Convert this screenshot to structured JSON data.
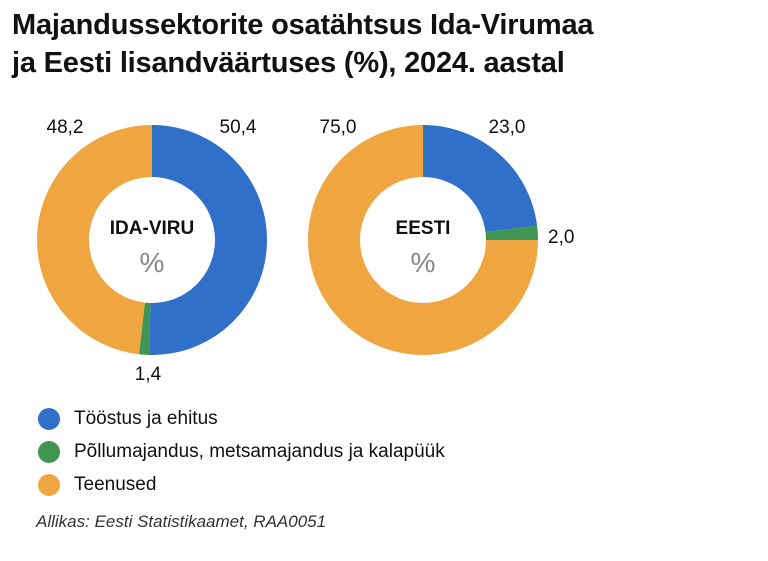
{
  "title_lines": [
    "Majandussektorite osatähtsus Ida-Virumaa",
    "ja Eesti lisandväärtuses (%), 2024. aastal"
  ],
  "chart_data": [
    {
      "type": "pie",
      "center_label": "IDA-VIRU",
      "unit": "%",
      "categories": [
        "Tööstus ja ehitus",
        "Põllumajandus, metsamajandus ja kalapüük",
        "Teenused"
      ],
      "values": [
        50.4,
        1.4,
        48.2
      ],
      "value_labels": [
        "50,4",
        "1,4",
        "48,2"
      ]
    },
    {
      "type": "pie",
      "center_label": "EESTI",
      "unit": "%",
      "categories": [
        "Tööstus ja ehitus",
        "Põllumajandus, metsamajandus ja kalapüük",
        "Teenused"
      ],
      "values": [
        23.0,
        2.0,
        75.0
      ],
      "value_labels": [
        "23,0",
        "2,0",
        "75,0"
      ]
    }
  ],
  "legend": [
    {
      "label": "Tööstus ja ehitus",
      "color": "#3070c8"
    },
    {
      "label": "Põllumajandus, metsamajandus ja kalapüük",
      "color": "#3f9650"
    },
    {
      "label": "Teenused",
      "color": "#f0a640"
    }
  ],
  "source": "Allikas: Eesti Statistikaamet, RAA0051"
}
